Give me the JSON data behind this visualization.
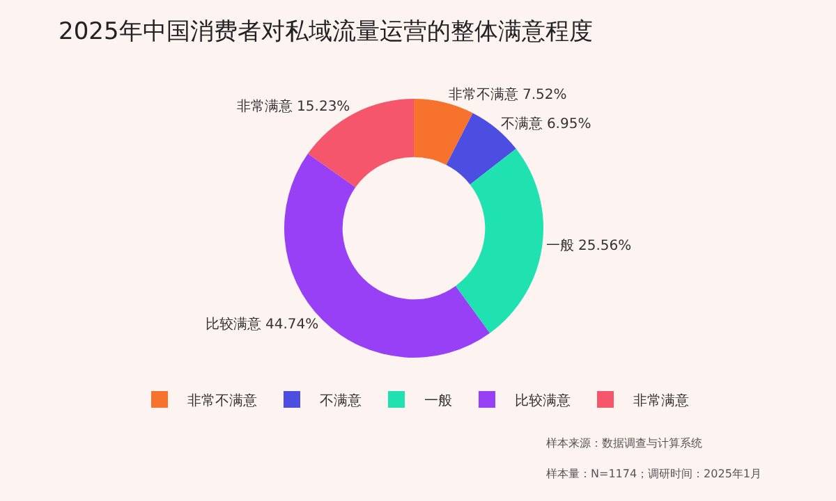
{
  "chart_data": {
    "type": "donut",
    "title": "2025年中国消费者对私域流量运营的整体满意程度",
    "categories": [
      "非常不满意",
      "不满意",
      "一般",
      "比较满意",
      "非常满意"
    ],
    "values": [
      7.52,
      6.95,
      25.56,
      44.74,
      15.23
    ],
    "value_labels": [
      "7.52%",
      "6.95%",
      "25.56%",
      "44.74%",
      "15.23%"
    ],
    "colors": [
      "#f7722c",
      "#4b4ee0",
      "#1fe2b0",
      "#9740f5",
      "#f5566b"
    ],
    "legend": "bottom",
    "annotations": [
      "样本来源：数据调查与计算系统",
      "样本量：N=1174；调研时间：2025年1月"
    ]
  }
}
